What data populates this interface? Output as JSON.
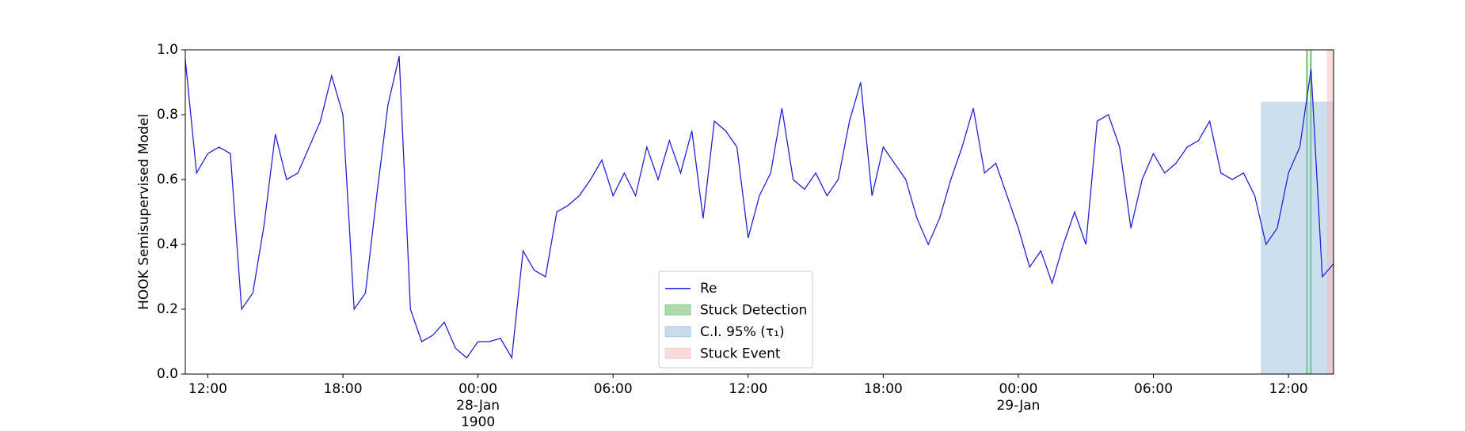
{
  "chart_data": {
    "type": "line",
    "y_label": "HOOK Semisupervised Model",
    "x": [
      11,
      11.5,
      12,
      12.5,
      13,
      13.5,
      14,
      14.5,
      15,
      15.5,
      16,
      16.5,
      17,
      17.5,
      18,
      18.5,
      19,
      19.5,
      20,
      20.5,
      21,
      21.5,
      22,
      22.5,
      23,
      23.5,
      24,
      24.5,
      25,
      25.5,
      26,
      26.5,
      27,
      27.5,
      28,
      28.5,
      29,
      29.5,
      30,
      30.5,
      31,
      31.5,
      32,
      32.5,
      33,
      33.5,
      34,
      34.5,
      35,
      35.5,
      36,
      36.5,
      37,
      37.5,
      38,
      38.5,
      39,
      39.5,
      40,
      40.5,
      41,
      41.5,
      42,
      42.5,
      43,
      43.5,
      44,
      44.5,
      45,
      45.5,
      46,
      46.5,
      47,
      47.5,
      48,
      48.5,
      49,
      49.5,
      50,
      50.5,
      51,
      51.5,
      52,
      52.5,
      53,
      53.5,
      54,
      54.5,
      55,
      55.5,
      56,
      56.5,
      57,
      57.5,
      58,
      58.5,
      59,
      59.5,
      60,
      60.5,
      61,
      61.5,
      62
    ],
    "series": [
      {
        "name": "Re",
        "color": "#2323d0",
        "values": [
          0.97,
          0.62,
          0.68,
          0.7,
          0.68,
          0.2,
          0.25,
          0.46,
          0.74,
          0.6,
          0.62,
          0.7,
          0.78,
          0.92,
          0.8,
          0.2,
          0.25,
          0.55,
          0.83,
          0.98,
          0.2,
          0.1,
          0.12,
          0.16,
          0.08,
          0.05,
          0.1,
          0.1,
          0.11,
          0.05,
          0.38,
          0.32,
          0.3,
          0.5,
          0.52,
          0.55,
          0.6,
          0.66,
          0.55,
          0.62,
          0.55,
          0.7,
          0.6,
          0.72,
          0.62,
          0.75,
          0.48,
          0.78,
          0.75,
          0.7,
          0.42,
          0.55,
          0.62,
          0.82,
          0.6,
          0.57,
          0.62,
          0.55,
          0.6,
          0.78,
          0.9,
          0.55,
          0.7,
          0.65,
          0.6,
          0.48,
          0.4,
          0.48,
          0.6,
          0.7,
          0.82,
          0.62,
          0.65,
          0.55,
          0.45,
          0.33,
          0.38,
          0.28,
          0.4,
          0.5,
          0.4,
          0.78,
          0.8,
          0.7,
          0.45,
          0.6,
          0.68,
          0.62,
          0.65,
          0.7,
          0.72,
          0.78,
          0.62,
          0.6,
          0.62,
          0.55,
          0.4,
          0.45,
          0.62,
          0.7,
          0.94,
          0.3,
          0.34
        ]
      }
    ],
    "spans": [
      {
        "name": "Stuck Detection",
        "color": "#5cb85c",
        "ranges": [
          [
            60.78,
            60.86
          ],
          [
            60.95,
            61.03
          ]
        ],
        "ymax": 1.0
      },
      {
        "name": "C.I. 95% (τ₁)",
        "color": "#8fb9d9",
        "ranges": [
          [
            58.77,
            62
          ]
        ],
        "ymax": 0.84
      },
      {
        "name": "Stuck Event",
        "color": "#f7b6b6",
        "ranges": [
          [
            61.7,
            62
          ]
        ],
        "ymax": 1.0
      }
    ],
    "xlim": [
      11,
      62
    ],
    "ylim": [
      0,
      1
    ],
    "xticks": [
      {
        "value": 12,
        "label": "12:00"
      },
      {
        "value": 18,
        "label": "18:00"
      },
      {
        "value": 24,
        "label": "00:00\n28-Jan\n1900"
      },
      {
        "value": 30,
        "label": "06:00"
      },
      {
        "value": 36,
        "label": "12:00"
      },
      {
        "value": 42,
        "label": "18:00"
      },
      {
        "value": 48,
        "label": "00:00\n29-Jan"
      },
      {
        "value": 54,
        "label": "06:00"
      },
      {
        "value": 60,
        "label": "12:00"
      }
    ],
    "yticks": [
      {
        "value": 0,
        "label": "0.0"
      },
      {
        "value": 0.2,
        "label": "0.2"
      },
      {
        "value": 0.4,
        "label": "0.4"
      },
      {
        "value": 0.6,
        "label": "0.6"
      },
      {
        "value": 0.8,
        "label": "0.8"
      },
      {
        "value": 1,
        "label": "1.0"
      }
    ],
    "legend": "lower center"
  }
}
